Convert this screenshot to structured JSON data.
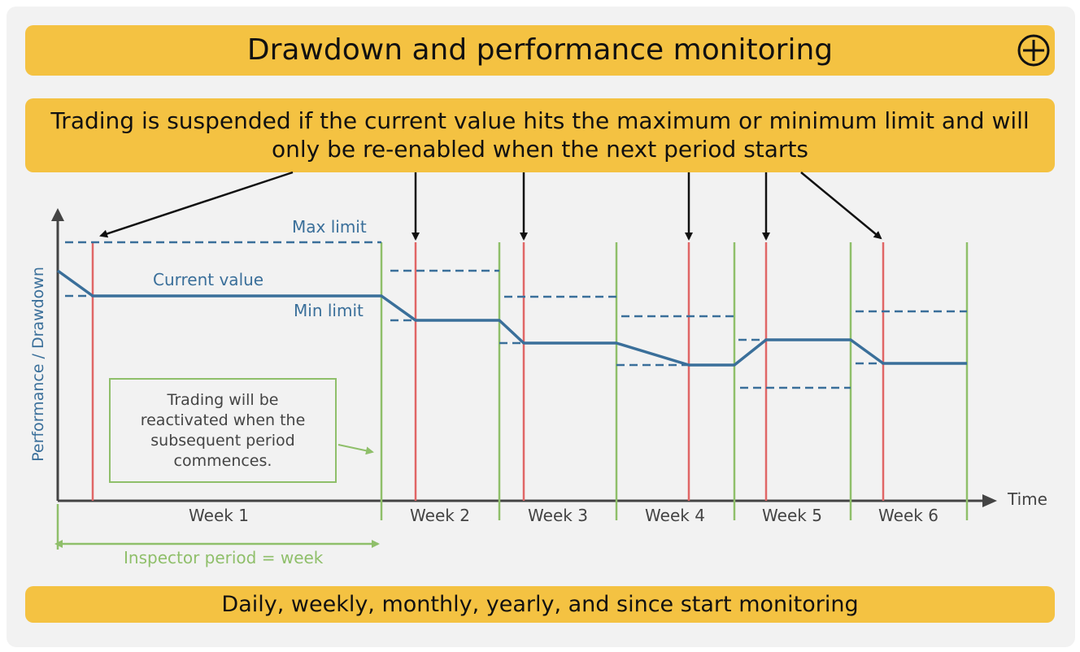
{
  "title": "Drawdown and performance monitoring",
  "info_text": "Trading is suspended if the current value hits the maximum or minimum limit and will only be re-enabled when the next period starts",
  "footer_text": "Daily, weekly, monthly, yearly, and since start monitoring",
  "expand_icon": "plus-circle-icon",
  "labels": {
    "max_limit": "Max limit",
    "current_value": "Current value",
    "min_limit": "Min limit",
    "y_axis": "Performance / Drawdown",
    "x_axis": "Time",
    "inspector_period": "Inspector period = week"
  },
  "note": "Trading will be reactivated when the subsequent period commences.",
  "weeks": [
    "Week 1",
    "Week 2",
    "Week 3",
    "Week 4",
    "Week 5",
    "Week 6"
  ],
  "colors": {
    "banner": "#f4c242",
    "current_value_line": "#3a6f9a",
    "limit_lines": "#3a6f9a",
    "suspension_marker": "#e06666",
    "period_boundary": "#8fbf6a",
    "background": "#f2f2f2"
  }
}
